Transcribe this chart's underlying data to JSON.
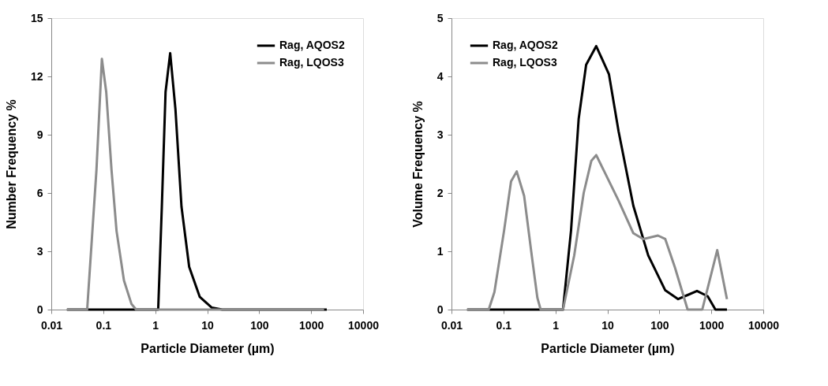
{
  "chart_data": [
    {
      "type": "line",
      "xlabel": "Particle Diameter (µm)",
      "ylabel": "Number Frequency %",
      "log": "x",
      "xlim": [
        0.01,
        10000
      ],
      "xticks": [
        0.01,
        0.1,
        1,
        10,
        100,
        1000,
        10000
      ],
      "ylim": [
        0,
        15
      ],
      "yticks": [
        0,
        3,
        6,
        9,
        12,
        15
      ],
      "grid": false,
      "legend": "top right",
      "marker": "none",
      "line_style": "solid",
      "series": [
        {
          "name": "Rag, AQOS2",
          "color": "#000000",
          "x": [
            0.02,
            1.14,
            1.34,
            1.58,
            1.94,
            2.45,
            3.2,
            4.5,
            7.2,
            12.3,
            19.5,
            2000
          ],
          "values": [
            0,
            0,
            5.3,
            11.2,
            13.2,
            10.3,
            5.3,
            2.2,
            0.65,
            0.1,
            0,
            0
          ]
        },
        {
          "name": "Rag, LQOS3",
          "color": "#8c8c8c",
          "x": [
            0.02,
            0.049,
            0.074,
            0.094,
            0.114,
            0.144,
            0.18,
            0.25,
            0.35,
            0.43,
            1780
          ],
          "values": [
            0,
            0,
            7.2,
            12.9,
            11.2,
            7.2,
            4.05,
            1.5,
            0.28,
            0,
            0
          ]
        }
      ]
    },
    {
      "type": "line",
      "xlabel": "Particle Diameter (µm)",
      "ylabel": "Volume Frequency %",
      "log": "x",
      "xlim": [
        0.01,
        10000
      ],
      "xticks": [
        0.01,
        0.1,
        1,
        10,
        100,
        1000,
        10000
      ],
      "ylim": [
        0,
        5
      ],
      "yticks": [
        0,
        1,
        2,
        3,
        4,
        5
      ],
      "grid": false,
      "legend": "top left",
      "marker": "none",
      "line_style": "solid",
      "series": [
        {
          "name": "Rag, AQOS2",
          "color": "#000000",
          "x": [
            0.02,
            1.4,
            2.0,
            2.8,
            3.9,
            6.1,
            10.7,
            16.4,
            31.6,
            61,
            130,
            230,
            350,
            530,
            850,
            1200,
            2000
          ],
          "values": [
            0,
            0,
            1.36,
            3.27,
            4.2,
            4.52,
            4.04,
            3.06,
            1.78,
            0.93,
            0.33,
            0.18,
            0.25,
            0.32,
            0.23,
            0,
            0
          ]
        },
        {
          "name": "Rag, LQOS3",
          "color": "#8c8c8c",
          "x": [
            0.02,
            0.052,
            0.067,
            0.103,
            0.14,
            0.18,
            0.25,
            0.35,
            0.45,
            0.52,
            1.4,
            2.3,
            3.5,
            4.9,
            6.1,
            16.4,
            31.6,
            49,
            94,
            130,
            200,
            350,
            670,
            1300,
            2000
          ],
          "values": [
            0,
            0,
            0.3,
            1.36,
            2.2,
            2.37,
            1.95,
            0.93,
            0.2,
            0,
            0,
            0.93,
            2.0,
            2.55,
            2.65,
            1.87,
            1.31,
            1.21,
            1.27,
            1.21,
            0.72,
            0,
            0,
            1.02,
            0.18
          ]
        }
      ]
    }
  ]
}
